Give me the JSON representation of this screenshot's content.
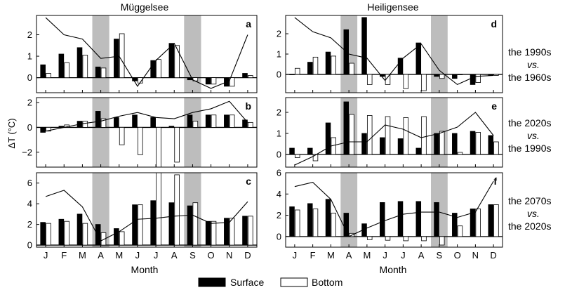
{
  "figure": {
    "ylabel": "ΔT (°C)",
    "xlabel": "Month",
    "column_titles": [
      "Müggelsee",
      "Heiligensee"
    ],
    "row_labels": [
      {
        "line1": "the 1990s",
        "line2": "vs.",
        "line3": "the 1960s"
      },
      {
        "line1": "the 2020s",
        "line2": "vs.",
        "line3": "the 1990s"
      },
      {
        "line1": "the 2070s",
        "line2": "vs.",
        "line3": "the 2020s"
      }
    ],
    "legend": {
      "surface": "Surface",
      "bottom": "Bottom"
    },
    "colors": {
      "surface": "#000000",
      "bottom": "#ffffff",
      "shade": "#bdbdbd",
      "line": "#000000"
    }
  },
  "chart_data": [
    {
      "panel": "a",
      "lake": "Müggelsee",
      "type": "bar",
      "categories": [
        "J",
        "F",
        "M",
        "A",
        "M",
        "J",
        "J",
        "A",
        "S",
        "O",
        "N",
        "D"
      ],
      "ylim": [
        -0.7,
        2.9
      ],
      "yticks": [
        0,
        1,
        2
      ],
      "shaded_months": [
        "A",
        "S"
      ],
      "series": [
        {
          "name": "Surface",
          "values": [
            0.6,
            1.1,
            1.4,
            0.5,
            1.8,
            -0.15,
            0.8,
            1.6,
            -0.1,
            -0.3,
            -0.4,
            0.2
          ]
        },
        {
          "name": "Bottom",
          "values": [
            0.2,
            0.7,
            1.05,
            0.45,
            2.05,
            -0.25,
            0.85,
            1.5,
            -0.15,
            -0.3,
            -0.4,
            0.1
          ]
        }
      ],
      "line": [
        2.8,
        2.0,
        1.8,
        0.9,
        1.0,
        -0.4,
        0.8,
        1.6,
        -0.1,
        -0.5,
        -0.15,
        2.0
      ]
    },
    {
      "panel": "b",
      "lake": "Müggelsee",
      "type": "bar",
      "categories": [
        "J",
        "F",
        "M",
        "A",
        "M",
        "J",
        "J",
        "A",
        "S",
        "O",
        "N",
        "D"
      ],
      "ylim": [
        -3.2,
        2.4
      ],
      "yticks": [
        -2,
        0,
        2
      ],
      "shaded_months": [
        "A",
        "S"
      ],
      "series": [
        {
          "name": "Surface",
          "values": [
            -0.4,
            0.1,
            0.5,
            1.3,
            0.8,
            1.0,
            0.8,
            0.1,
            1.0,
            1.0,
            1.0,
            0.6
          ]
        },
        {
          "name": "Bottom",
          "values": [
            -0.3,
            0.2,
            0.5,
            0.7,
            -1.4,
            -2.2,
            -3.2,
            -2.8,
            0.5,
            1.0,
            1.0,
            0.4
          ]
        }
      ],
      "line": [
        -0.3,
        0.0,
        0.3,
        0.5,
        0.9,
        1.2,
        0.8,
        0.7,
        1.2,
        1.5,
        2.1,
        0.4
      ]
    },
    {
      "panel": "c",
      "lake": "Müggelsee",
      "type": "bar",
      "categories": [
        "J",
        "F",
        "M",
        "A",
        "M",
        "J",
        "J",
        "A",
        "S",
        "O",
        "N",
        "D"
      ],
      "ylim": [
        -0.2,
        7.0
      ],
      "yticks": [
        0,
        2,
        4,
        6
      ],
      "shaded_months": [
        "A",
        "S"
      ],
      "series": [
        {
          "name": "Surface",
          "values": [
            2.2,
            2.5,
            3.0,
            2.0,
            1.6,
            3.9,
            4.3,
            4.1,
            3.8,
            2.3,
            2.6,
            2.8
          ]
        },
        {
          "name": "Bottom",
          "values": [
            2.1,
            2.3,
            2.1,
            1.2,
            1.3,
            3.9,
            7.0,
            6.8,
            4.1,
            2.3,
            2.6,
            2.8
          ]
        }
      ],
      "line": [
        4.7,
        5.3,
        3.7,
        0.4,
        1.3,
        2.5,
        2.6,
        2.8,
        2.9,
        2.1,
        2.2,
        4.2
      ]
    },
    {
      "panel": "d",
      "lake": "Heiligensee",
      "type": "bar",
      "categories": [
        "J",
        "F",
        "M",
        "A",
        "M",
        "J",
        "J",
        "A",
        "S",
        "O",
        "N",
        "D"
      ],
      "ylim": [
        -0.9,
        2.9
      ],
      "yticks": [
        0,
        1,
        2
      ],
      "shaded_months": [
        "A",
        "S"
      ],
      "series": [
        {
          "name": "Surface",
          "values": [
            0.0,
            0.6,
            1.1,
            2.2,
            2.8,
            -0.1,
            0.8,
            1.55,
            -0.1,
            -0.2,
            -0.5,
            -0.05
          ]
        },
        {
          "name": "Bottom",
          "values": [
            0.3,
            0.85,
            0.9,
            0.55,
            -0.5,
            -0.5,
            -0.7,
            -0.8,
            -0.2,
            0.0,
            -0.4,
            -0.05
          ]
        }
      ],
      "line": [
        2.8,
        2.1,
        1.8,
        1.0,
        0.8,
        -0.3,
        0.8,
        1.5,
        0.2,
        -0.5,
        -0.1,
        -0.05
      ]
    },
    {
      "panel": "e",
      "lake": "Heiligensee",
      "type": "bar",
      "categories": [
        "J",
        "F",
        "M",
        "A",
        "M",
        "J",
        "J",
        "A",
        "S",
        "O",
        "N",
        "D"
      ],
      "ylim": [
        -0.6,
        2.7
      ],
      "yticks": [
        0,
        1,
        2
      ],
      "shaded_months": [
        "A",
        "S"
      ],
      "series": [
        {
          "name": "Surface",
          "values": [
            0.3,
            0.3,
            1.5,
            2.5,
            1.0,
            0.8,
            0.75,
            0.3,
            1.0,
            1.0,
            1.1,
            0.9
          ]
        },
        {
          "name": "Bottom",
          "values": [
            -0.15,
            -0.3,
            0.8,
            1.9,
            1.85,
            1.8,
            1.75,
            1.8,
            1.1,
            0.1,
            1.05,
            0.6
          ]
        }
      ],
      "line": [
        -0.5,
        -0.1,
        0.4,
        0.6,
        0.6,
        1.4,
        1.2,
        0.8,
        1.0,
        1.3,
        2.0,
        0.9
      ]
    },
    {
      "panel": "f",
      "lake": "Heiligensee",
      "type": "bar",
      "categories": [
        "J",
        "F",
        "M",
        "A",
        "M",
        "J",
        "J",
        "A",
        "S",
        "O",
        "N",
        "D"
      ],
      "ylim": [
        -1.0,
        6.0
      ],
      "yticks": [
        0,
        2,
        4,
        6
      ],
      "shaded_months": [
        "A",
        "S"
      ],
      "series": [
        {
          "name": "Surface",
          "values": [
            2.8,
            3.1,
            3.5,
            2.2,
            1.2,
            3.2,
            3.3,
            3.3,
            3.2,
            2.2,
            2.6,
            3.0
          ]
        },
        {
          "name": "Bottom",
          "values": [
            2.5,
            2.6,
            2.2,
            0.3,
            -0.3,
            -0.35,
            -0.4,
            -0.4,
            -0.8,
            1.0,
            2.6,
            3.0
          ]
        }
      ],
      "line": [
        4.7,
        5.1,
        3.5,
        0.0,
        0.8,
        1.5,
        2.1,
        2.3,
        2.3,
        1.8,
        2.3,
        5.2
      ]
    }
  ]
}
